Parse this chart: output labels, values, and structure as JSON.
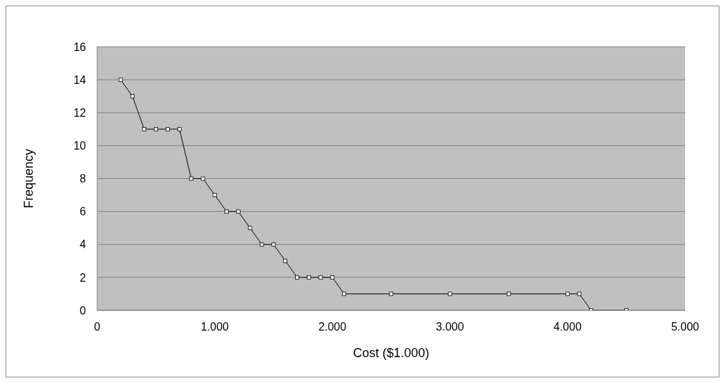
{
  "chart_data": {
    "type": "line",
    "xlabel": "Cost ($1.000)",
    "ylabel": "Frequency",
    "x": [
      200,
      300,
      400,
      500,
      600,
      700,
      800,
      900,
      1000,
      1100,
      1200,
      1300,
      1400,
      1500,
      1600,
      1700,
      1800,
      1900,
      2000,
      2100,
      2500,
      3000,
      3500,
      4000,
      4100,
      4200,
      4500
    ],
    "series": [
      {
        "color": "#000000",
        "values": [
          14,
          13,
          11,
          11,
          11,
          11,
          8,
          8,
          7,
          6,
          6,
          5,
          4,
          4,
          3,
          2,
          2,
          2,
          2,
          1,
          1,
          1,
          1,
          1,
          1,
          0,
          0
        ]
      }
    ],
    "xlim": [
      0,
      5000
    ],
    "xticks": [
      0,
      {
        "value": 1000,
        "label": "1.000"
      },
      {
        "value": 2000,
        "label": "2.000"
      },
      {
        "value": 3000,
        "label": "3.000"
      },
      {
        "value": 4000,
        "label": "4.000"
      },
      {
        "value": 5000,
        "label": "5.000"
      }
    ],
    "ylim": [
      0,
      16
    ],
    "yticks": [
      0,
      2,
      4,
      6,
      8,
      10,
      12,
      14,
      16
    ],
    "grid": "y",
    "marker": "square",
    "line_style": "solid"
  }
}
